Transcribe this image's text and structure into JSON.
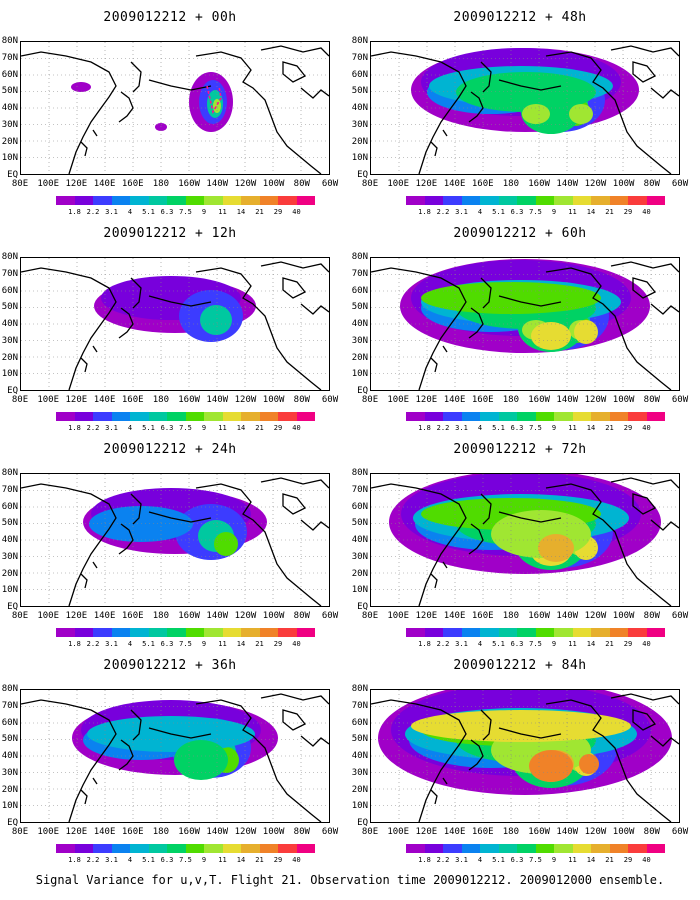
{
  "panels": [
    {
      "title": "2009012212 + 00h",
      "intensity": 0
    },
    {
      "title": "2009012212 + 48h",
      "intensity": 4
    },
    {
      "title": "2009012212 + 12h",
      "intensity": 1
    },
    {
      "title": "2009012212 + 60h",
      "intensity": 5
    },
    {
      "title": "2009012212 + 24h",
      "intensity": 2
    },
    {
      "title": "2009012212 + 72h",
      "intensity": 6
    },
    {
      "title": "2009012212 + 36h",
      "intensity": 3
    },
    {
      "title": "2009012212 + 84h",
      "intensity": 7
    }
  ],
  "y_labels": [
    "80N",
    "70N",
    "60N",
    "50N",
    "40N",
    "30N",
    "20N",
    "10N",
    "EQ"
  ],
  "x_labels": [
    "80E",
    "100E",
    "120E",
    "140E",
    "160E",
    "180",
    "160W",
    "140W",
    "120W",
    "100W",
    "80W",
    "60W"
  ],
  "colorbar": {
    "labels": [
      "1.8",
      "2.2",
      "3.1",
      "4",
      "5.1",
      "6.3",
      "7.5",
      "9",
      "11",
      "14",
      "21",
      "29",
      "40"
    ],
    "colors": [
      "#a000c8",
      "#7800dc",
      "#3c3cff",
      "#0a82f0",
      "#00b4d2",
      "#00c8a0",
      "#00d264",
      "#50dc00",
      "#a0e632",
      "#e6dc32",
      "#e6af2d",
      "#f08228",
      "#fa3c3c",
      "#f00082"
    ]
  },
  "caption": "Signal Variance for u,v,T. Flight 21. Observation time 2009012212. 2009012000 ensemble."
}
